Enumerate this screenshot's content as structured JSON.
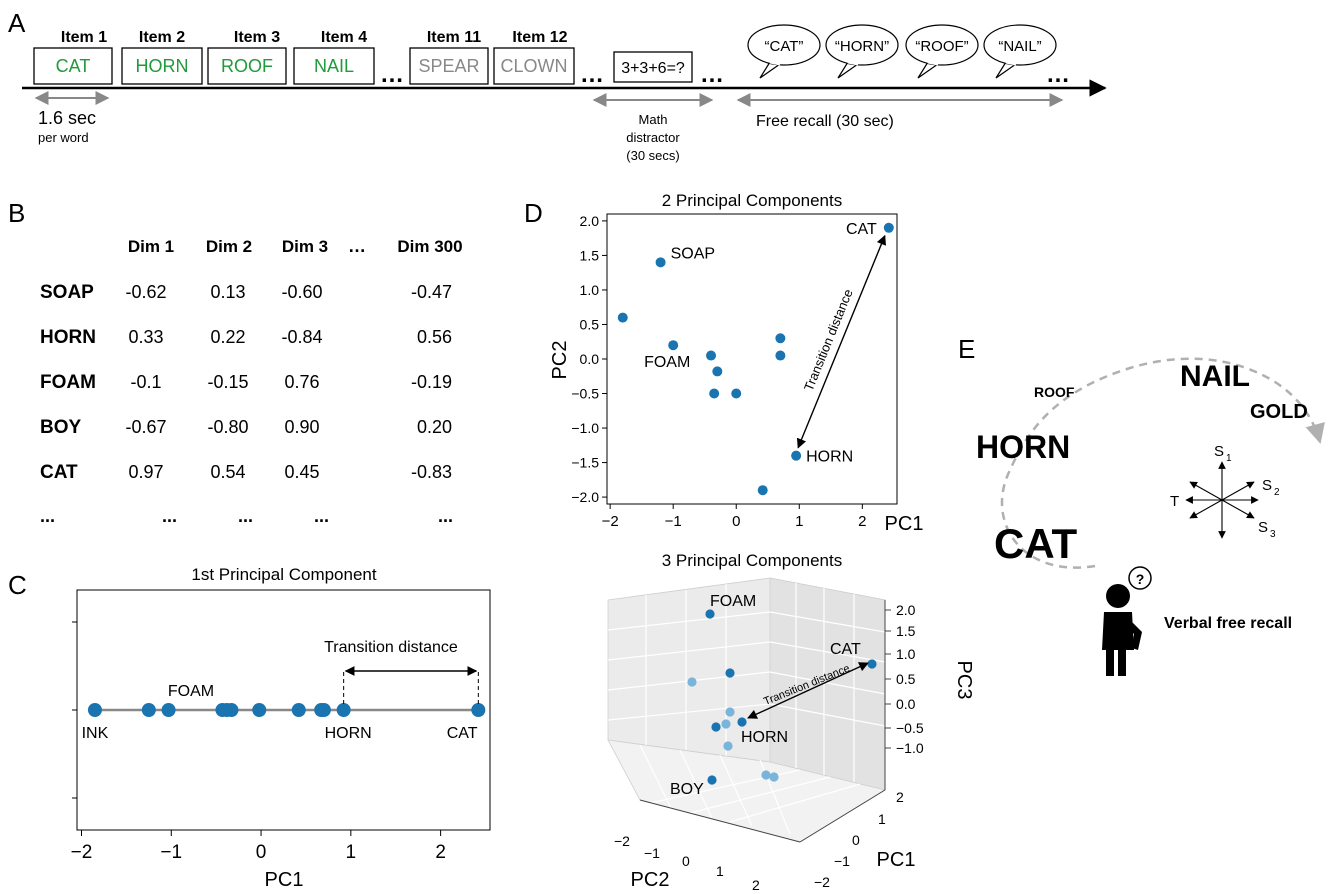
{
  "panel_letters": {
    "a": "A",
    "b": "B",
    "c": "C",
    "d": "D",
    "e": "E"
  },
  "colors": {
    "recalled_green": "#1f9a3c",
    "unrecalled_gray": "#888888",
    "point_blue": "#1a74b0",
    "point_light_blue": "#79b4da",
    "axis_black": "#000000",
    "arrow_gray": "#888888",
    "dashed_gray": "#b0b0b0"
  },
  "panel_a": {
    "items": [
      {
        "header": "Item 1",
        "word": "CAT",
        "recalled": true
      },
      {
        "header": "Item 2",
        "word": "HORN",
        "recalled": true
      },
      {
        "header": "Item 3",
        "word": "ROOF",
        "recalled": true
      },
      {
        "header": "Item 4",
        "word": "NAIL",
        "recalled": true
      },
      {
        "header": "Item 11",
        "word": "SPEAR",
        "recalled": false
      },
      {
        "header": "Item 12",
        "word": "CLOWN",
        "recalled": false
      }
    ],
    "ellipsis": "…",
    "math_problem": "3+3+6=?",
    "recalls": [
      "“CAT”",
      "“HORN”",
      "“ROOF”",
      "“NAIL”"
    ],
    "duration_label": "1.6 sec",
    "duration_sub": "per word",
    "math_label": [
      "Math",
      "distractor",
      "(30 secs)"
    ],
    "recall_label": "Free recall (30 sec)"
  },
  "panel_b": {
    "columns": [
      "Dim 1",
      "Dim 2",
      "Dim 3",
      "Dim 300"
    ],
    "rows": [
      {
        "word": "SOAP",
        "values": [
          "-0.62",
          "0.13",
          "-0.60",
          "-0.47"
        ]
      },
      {
        "word": "HORN",
        "values": [
          "0.33",
          "0.22",
          "-0.84",
          "0.56"
        ]
      },
      {
        "word": "FOAM",
        "values": [
          "-0.1",
          "-0.15",
          "0.76",
          "-0.19"
        ]
      },
      {
        "word": "BOY",
        "values": [
          "-0.67",
          "-0.80",
          "0.90",
          "0.20"
        ]
      },
      {
        "word": "CAT",
        "values": [
          "0.97",
          "0.54",
          "0.45",
          "-0.83"
        ]
      }
    ],
    "ellipsis": "…",
    "more": "..."
  },
  "chart_data": [
    {
      "type": "scatter",
      "title": "1st Principal Component",
      "xlabel": "PC1",
      "ylabel": "",
      "xlim": [
        -2.05,
        2.55
      ],
      "xticks": [
        "−2",
        "−1",
        "0",
        "1",
        "2"
      ],
      "x": [
        -1.85,
        -1.25,
        -1.03,
        -0.43,
        -0.38,
        -0.33,
        -0.02,
        0.42,
        0.67,
        0.7,
        0.92,
        2.42
      ],
      "labels": {
        "INK": -1.85,
        "FOAM": -1.03,
        "HORN": 0.92,
        "CAT": 2.42
      },
      "annotation": "Transition distance"
    },
    {
      "type": "scatter",
      "title": "2 Principal Components",
      "xlabel": "PC1",
      "ylabel": "PC2",
      "xlim": [
        -2.05,
        2.55
      ],
      "ylim": [
        -2.1,
        2.1
      ],
      "xticks": [
        "−2",
        "−1",
        "0",
        "1",
        "2"
      ],
      "yticks": [
        "2.0",
        "1.5",
        "1.0",
        "0.5",
        "0.0",
        "−0.5",
        "−1.0",
        "−1.5",
        "−2.0"
      ],
      "points": [
        {
          "x": 2.42,
          "y": 1.9,
          "label": "CAT"
        },
        {
          "x": -1.2,
          "y": 1.4,
          "label": "SOAP"
        },
        {
          "x": -1.8,
          "y": 0.6
        },
        {
          "x": -1.0,
          "y": 0.2,
          "label": "FOAM"
        },
        {
          "x": -0.4,
          "y": 0.05
        },
        {
          "x": -0.3,
          "y": -0.18
        },
        {
          "x": -0.35,
          "y": -0.5
        },
        {
          "x": 0.0,
          "y": -0.5
        },
        {
          "x": 0.7,
          "y": 0.3
        },
        {
          "x": 0.7,
          "y": 0.05
        },
        {
          "x": 0.95,
          "y": -1.4,
          "label": "HORN"
        },
        {
          "x": 0.42,
          "y": -1.9
        }
      ],
      "annotation": "Transition distance"
    },
    {
      "type": "scatter",
      "title": "3 Principal Components",
      "xlabel": "PC1",
      "ylabel": "PC2",
      "zlabel": "PC3",
      "zticks": [
        "2.0",
        "1.5",
        "1.0",
        "0.5",
        "0.0",
        "−0.5",
        "−1.0"
      ],
      "pc1ticks": [
        "2",
        "1",
        "0",
        "−1",
        "−2"
      ],
      "pc2ticks": [
        "−2",
        "−1",
        "0",
        "1",
        "2"
      ],
      "labels": [
        "FOAM",
        "CAT",
        "HORN",
        "BOY"
      ],
      "annotation": "Transition distance"
    }
  ],
  "panel_e": {
    "words": [
      "ROOF",
      "NAIL",
      "GOLD",
      "HORN",
      "CAT"
    ],
    "axes": {
      "s1": "S",
      "s1_sub": "1",
      "s2": "S",
      "s2_sub": "2",
      "s3": "S",
      "s3_sub": "3",
      "t": "T"
    },
    "question": "?",
    "caption": "Verbal free recall"
  }
}
